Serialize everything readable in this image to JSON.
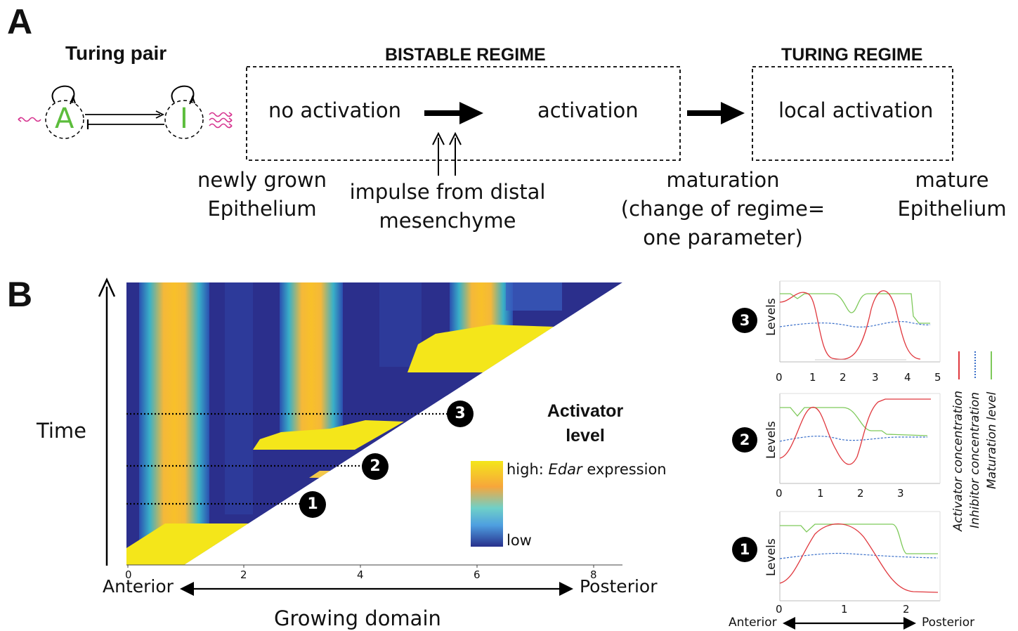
{
  "panel_a": {
    "letter": "A",
    "turing_pair_title": "Turing pair",
    "activator_symbol": "A",
    "inhibitor_symbol": "I",
    "bistable": {
      "title": "BISTABLE REGIME",
      "left_state": "no activation",
      "right_state": "activation"
    },
    "turing": {
      "title": "TURING REGIME",
      "state": "local activation"
    },
    "label_newly_grown": "newly grown\nEpithelium",
    "label_impulse": "impulse from distal\nmesenchyme",
    "label_maturation": "maturation\n(change of regime=\none parameter)",
    "label_mature": "mature\nEpithelium",
    "colors": {
      "accent_green": "#5cbd3c",
      "accent_magenta": "#d6338f"
    }
  },
  "panel_b": {
    "letter": "B",
    "time_label": "Time",
    "colorbar_title": "Activator\nlevel",
    "colorbar_high_prefix": "high: ",
    "colorbar_high_gene": "Edar",
    "colorbar_high_suffix": " expression",
    "colorbar_low": "low",
    "x_ticks": [
      "0",
      "2",
      "4",
      "6",
      "8"
    ],
    "anterior": "Anterior",
    "posterior": "Posterior",
    "growing_domain": "Growing domain",
    "markers": [
      "1",
      "2",
      "3"
    ],
    "colors": {
      "low": "#2b2f8c",
      "high": "#f4e61a"
    }
  },
  "profiles": {
    "ylabel": "Levels",
    "anterior": "Anterior",
    "posterior": "Posterior",
    "legend": [
      "Activator concentration",
      "Inhibitor concentration",
      "Maturation level"
    ],
    "legend_colors": [
      "#e0383e",
      "#3a6fc9",
      "#7ec95a"
    ],
    "panel3": {
      "marker": "3",
      "x_ticks": [
        "0",
        "1",
        "2",
        "3",
        "4",
        "5"
      ]
    },
    "panel2": {
      "marker": "2",
      "x_ticks": [
        "0",
        "1",
        "2",
        "3"
      ]
    },
    "panel1": {
      "marker": "1",
      "x_ticks": [
        "0",
        "1",
        "2"
      ]
    }
  }
}
